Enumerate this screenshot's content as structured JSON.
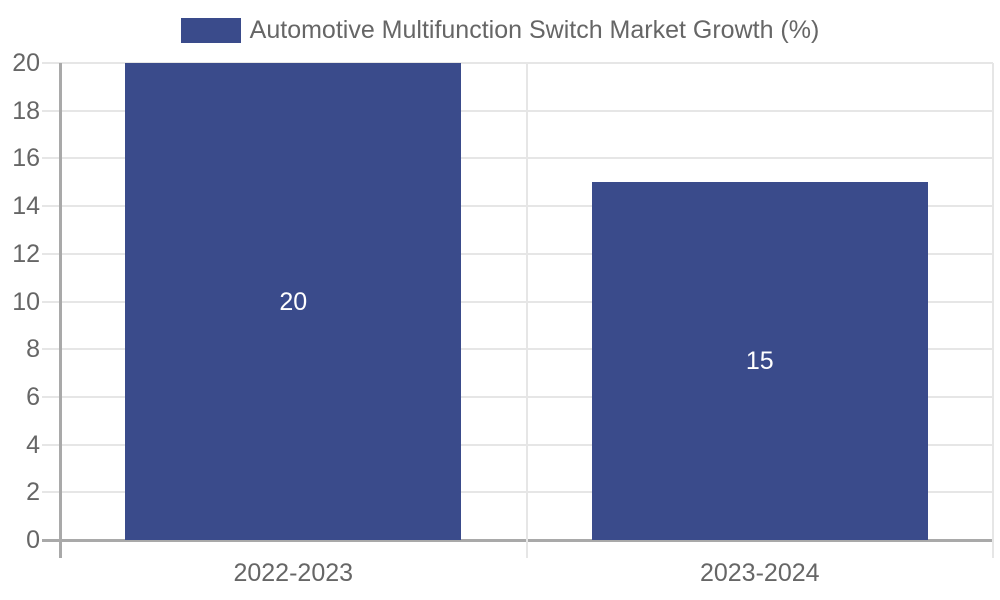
{
  "chart_data": {
    "type": "bar",
    "legend": "Automotive Multifunction Switch Market Growth (%)",
    "legend_position": "top",
    "categories": [
      "2022-2023",
      "2023-2024"
    ],
    "values": [
      20,
      15
    ],
    "xlabel": "",
    "ylabel": "",
    "ylim": [
      0,
      20
    ],
    "ytick_step": 2,
    "ytick_labels": [
      "0",
      "2",
      "4",
      "6",
      "8",
      "10",
      "12",
      "14",
      "16",
      "18",
      "20"
    ],
    "grid": true,
    "bar_value_labels_inside": true,
    "colors": {
      "bar": "#3A4B8B",
      "axis_text": "#666666",
      "grid_line": "#E6E6E6",
      "axis_line": "#A9A9A9",
      "bar_label_text": "#FFFFFF",
      "background": "#FFFFFF"
    }
  }
}
